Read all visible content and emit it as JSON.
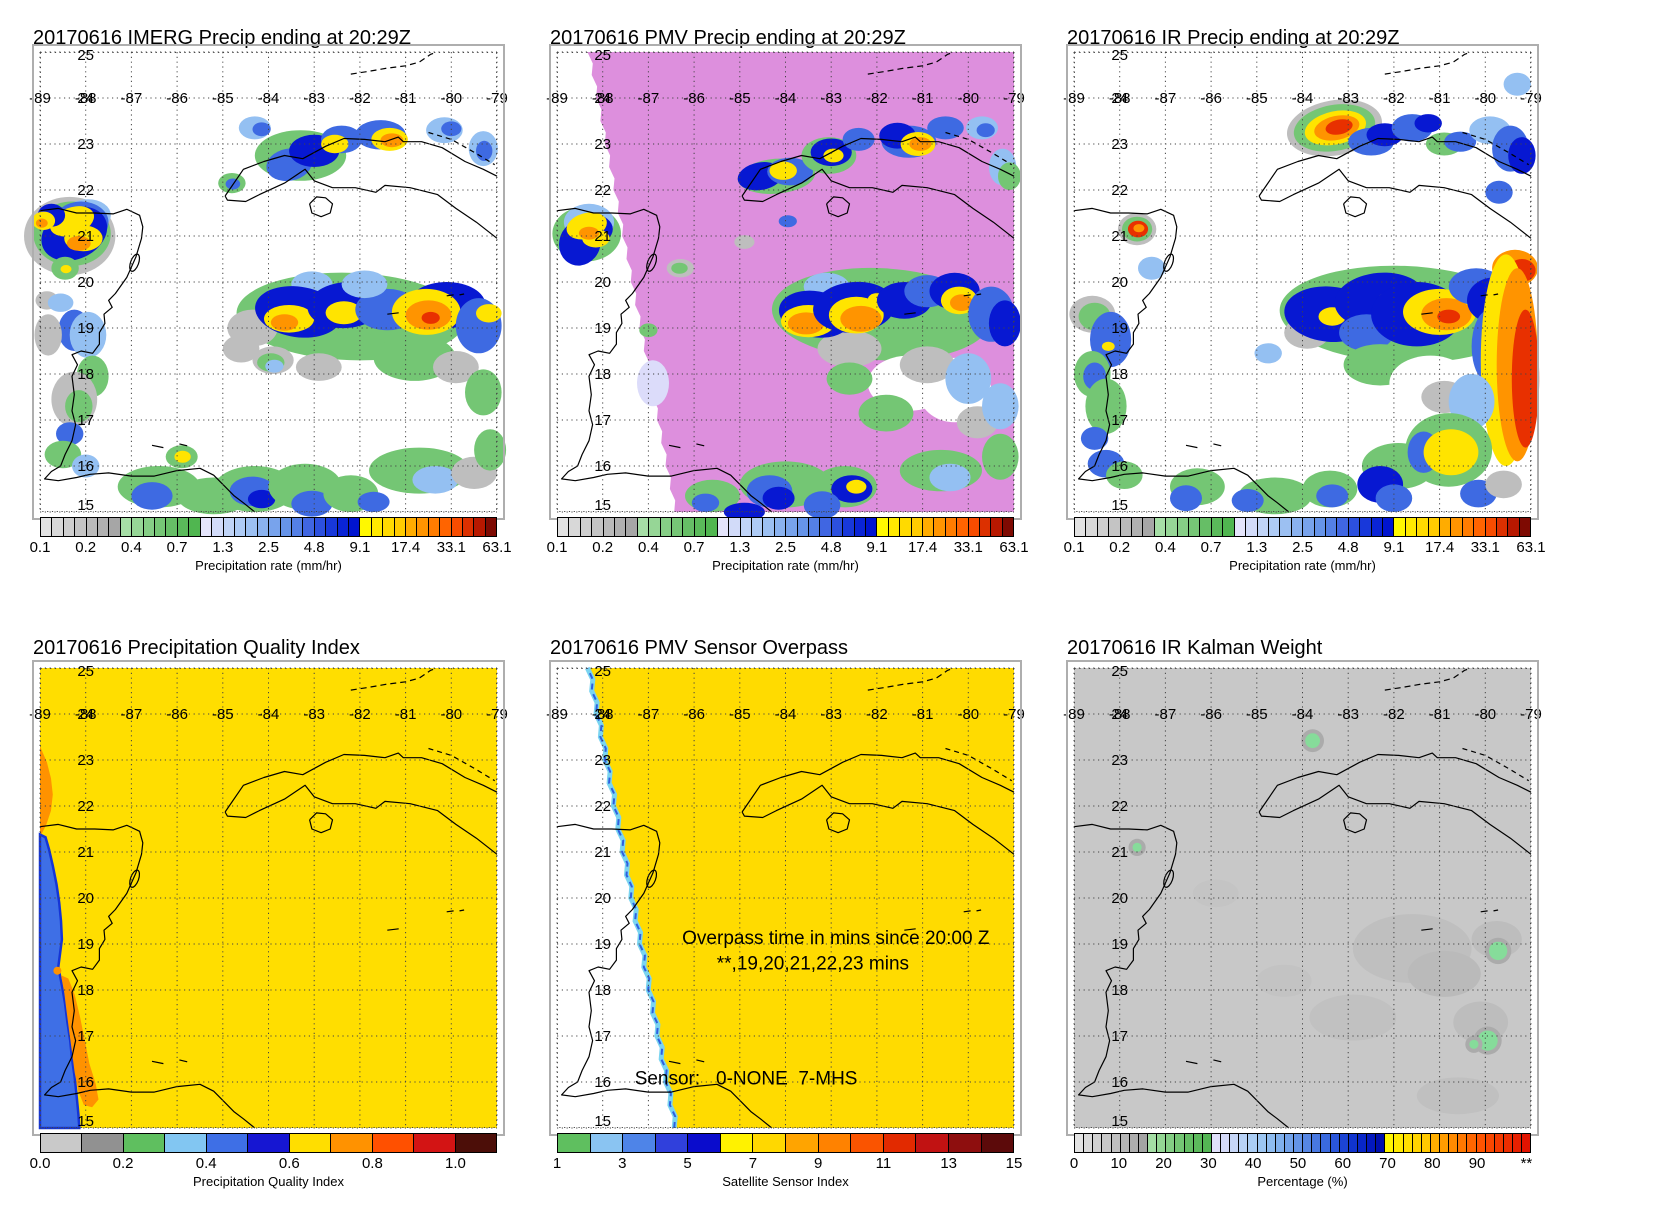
{
  "axes": {
    "lon_labels": [
      "-89",
      "-88",
      "-87",
      "-86",
      "-85",
      "-84",
      "-83",
      "-82",
      "-81",
      "-80",
      "-79"
    ],
    "lat_labels": [
      "25",
      "24",
      "23",
      "22",
      "21",
      "20",
      "19",
      "18",
      "17",
      "16",
      "15"
    ]
  },
  "colorbars": {
    "precip": {
      "label": "Precipitation rate (mm/hr)",
      "ticks": [
        {
          "t": "0.1",
          "f": 0
        },
        {
          "t": "0.2",
          "f": 0.1
        },
        {
          "t": "0.4",
          "f": 0.2
        },
        {
          "t": "0.7",
          "f": 0.3
        },
        {
          "t": "1.3",
          "f": 0.4
        },
        {
          "t": "2.5",
          "f": 0.5
        },
        {
          "t": "4.8",
          "f": 0.6
        },
        {
          "t": "9.1",
          "f": 0.7
        },
        {
          "t": "17.4",
          "f": 0.8
        },
        {
          "t": "33.1",
          "f": 0.9
        },
        {
          "t": "63.1",
          "f": 1.0
        }
      ],
      "segments": [
        "#E2E2E2",
        "#D8D8D8",
        "#CECECE",
        "#C4C4C4",
        "#BABABA",
        "#B0B0B0",
        "#A6A6A6",
        "#A6DEA6",
        "#96D696",
        "#86CE86",
        "#76C676",
        "#66BE66",
        "#5ABA5A",
        "#50B650",
        "#E4E4FB",
        "#D2DBF9",
        "#C0D4F7",
        "#AECBF5",
        "#9CC0F2",
        "#8AB2EF",
        "#78A3EC",
        "#6694E9",
        "#5480E6",
        "#4066E2",
        "#2C50DE",
        "#1838DA",
        "#0A24D6",
        "#0014D0",
        "#FFF800",
        "#FFE900",
        "#FFDA00",
        "#FFCB00",
        "#FFAC00",
        "#FF9400",
        "#FF7C00",
        "#FF6400",
        "#F74C00",
        "#DC3000",
        "#B81800",
        "#7E0A02"
      ]
    },
    "pqi": {
      "label": "Precipitation Quality Index",
      "ticks": [
        {
          "t": "0.0",
          "f": 0
        },
        {
          "t": "0.2",
          "f": 0.1818
        },
        {
          "t": "0.4",
          "f": 0.3636
        },
        {
          "t": "0.6",
          "f": 0.5455
        },
        {
          "t": "0.8",
          "f": 0.7273
        },
        {
          "t": "1.0",
          "f": 0.9091
        }
      ],
      "segments": [
        "#C9C9C9",
        "#919191",
        "#5FBF5F",
        "#82C6F2",
        "#3E6FE6",
        "#1616D2",
        "#FFDE00",
        "#FF9200",
        "#FF5000",
        "#D31414",
        "#4C0E08"
      ]
    },
    "sensor": {
      "label": "Satellite Sensor Index",
      "ticks": [
        {
          "t": "1",
          "f": 0
        },
        {
          "t": "3",
          "f": 0.1429
        },
        {
          "t": "5",
          "f": 0.2857
        },
        {
          "t": "7",
          "f": 0.4286
        },
        {
          "t": "9",
          "f": 0.5714
        },
        {
          "t": "11",
          "f": 0.7143
        },
        {
          "t": "13",
          "f": 0.8571
        },
        {
          "t": "15",
          "f": 1.0
        }
      ],
      "segments": [
        "#5FBF5F",
        "#8AC4F2",
        "#4E84E8",
        "#3040DC",
        "#0A0CCC",
        "#FFF200",
        "#FFD800",
        "#FFA400",
        "#FF8200",
        "#FA5400",
        "#E22A00",
        "#C11212",
        "#8E0E0E",
        "#5C0A0A"
      ]
    },
    "percent": {
      "label": "Percentage (%)",
      "ticks": [
        {
          "t": "0",
          "f": 0
        },
        {
          "t": "10",
          "f": 0.098
        },
        {
          "t": "20",
          "f": 0.196
        },
        {
          "t": "30",
          "f": 0.294
        },
        {
          "t": "40",
          "f": 0.392
        },
        {
          "t": "50",
          "f": 0.49
        },
        {
          "t": "60",
          "f": 0.588
        },
        {
          "t": "70",
          "f": 0.686
        },
        {
          "t": "80",
          "f": 0.784
        },
        {
          "t": "90",
          "f": 0.882
        },
        {
          "t": "**",
          "f": 0.99
        }
      ],
      "segments": [
        "#E3E3E3",
        "#DADADA",
        "#D1D1D1",
        "#C8C8C8",
        "#BFBFBF",
        "#B6B6B6",
        "#ADADAD",
        "#A4A4A4",
        "#A4DEA4",
        "#94D694",
        "#84CE84",
        "#74C674",
        "#64BE64",
        "#5CBA5C",
        "#54B654",
        "#E0E0FA",
        "#D4DAF8",
        "#C6D6F7",
        "#B8D2F6",
        "#AACDF4",
        "#9CC6F2",
        "#8EBCF0",
        "#80B0ED",
        "#72A2EA",
        "#6494E7",
        "#5686E4",
        "#4878E1",
        "#3A6ADE",
        "#2A56DA",
        "#1C44D4",
        "#1034CE",
        "#0826C8",
        "#0318BE",
        "#000EAE",
        "#FFF500",
        "#FFEA00",
        "#FFDF00",
        "#FFD400",
        "#FFC900",
        "#FFAE00",
        "#FF9C00",
        "#FF8A00",
        "#FF7800",
        "#FF6600",
        "#FF5400",
        "#F94700",
        "#F33A00",
        "#ED2D00",
        "#E72000",
        "#E11300"
      ]
    }
  },
  "panels": [
    {
      "id": "imerg",
      "title": "20170616 IMERG Precip ending at 20:29Z",
      "colorbar": "precip"
    },
    {
      "id": "pmv",
      "title": "20170616 PMV Precip ending at 20:29Z",
      "colorbar": "precip"
    },
    {
      "id": "ir",
      "title": "20170616 IR Precip ending at 20:29Z",
      "colorbar": "precip"
    },
    {
      "id": "pqi",
      "title": "20170616 Precipitation Quality Index",
      "colorbar": "pqi"
    },
    {
      "id": "overpass",
      "title": "20170616 PMV Sensor Overpass",
      "colorbar": "sensor",
      "annotations": {
        "line1": "Overpass time in mins since 20:00 Z",
        "line2": "**,19,20,21,22,23 mins",
        "sensor_line": "Sensor:   0-NONE  7-MHS"
      }
    },
    {
      "id": "kalman",
      "title": "20170616 IR Kalman Weight",
      "colorbar": "percent"
    }
  ],
  "colors": {
    "pmv_swath": "#DD8FDD",
    "overpass_swath": "#FFDB00",
    "pqi_bg": "#FFDE00",
    "pqi_blue": "#3E6FE6",
    "pqi_blue_rim": "#1535D6",
    "pqi_orange": "#FF9200",
    "kalman_bg": "#C8C8C8",
    "map_bg": "#FFFFFF",
    "swath_edge_cyan": "#7AD4F0",
    "swath_edge_blue": "#2E5FE0"
  }
}
